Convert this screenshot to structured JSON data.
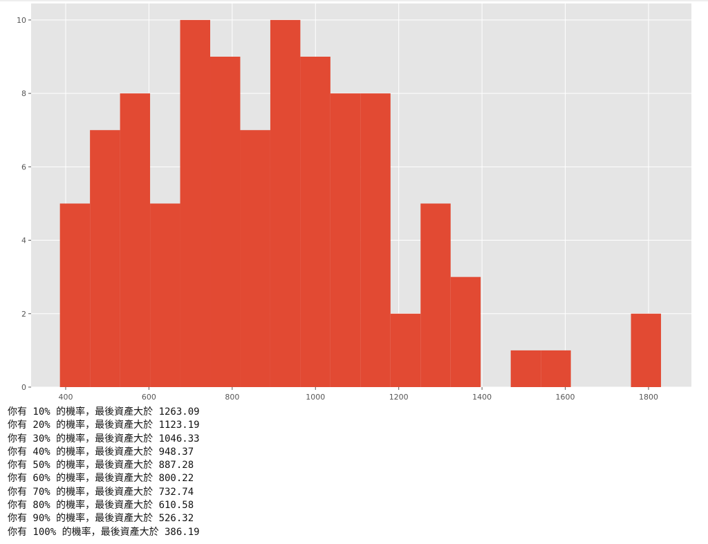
{
  "chart_data": {
    "type": "histogram",
    "bins": [
      386.19,
      458.38,
      530.57,
      602.76,
      674.95,
      747.14,
      819.33,
      891.52,
      963.71,
      1035.9,
      1108.09,
      1180.28,
      1252.47,
      1324.66,
      1396.85,
      1469.04,
      1541.23,
      1613.42,
      1685.61,
      1757.8,
      1830.0
    ],
    "values": [
      5,
      7,
      8,
      5,
      10,
      9,
      7,
      10,
      9,
      8,
      8,
      2,
      5,
      3,
      0,
      1,
      1,
      0,
      0,
      2
    ],
    "color": "#e24a33",
    "xlim": [
      317,
      1903
    ],
    "ylim": [
      0,
      10.45
    ],
    "xticks": [
      400,
      600,
      800,
      1000,
      1200,
      1400,
      1600,
      1800
    ],
    "yticks": [
      0,
      2,
      4,
      6,
      8,
      10
    ],
    "grid": true
  },
  "output": [
    "你有 10% 的機率，最後資產大於 1263.09",
    "你有 20% 的機率，最後資產大於 1123.19",
    "你有 30% 的機率，最後資產大於 1046.33",
    "你有 40% 的機率，最後資產大於 948.37",
    "你有 50% 的機率，最後資產大於 887.28",
    "你有 60% 的機率，最後資產大於 800.22",
    "你有 70% 的機率，最後資產大於 732.74",
    "你有 80% 的機率，最後資產大於 610.58",
    "你有 90% 的機率，最後資產大於 526.32",
    "你有 100% 的機率，最後資產大於 386.19"
  ]
}
